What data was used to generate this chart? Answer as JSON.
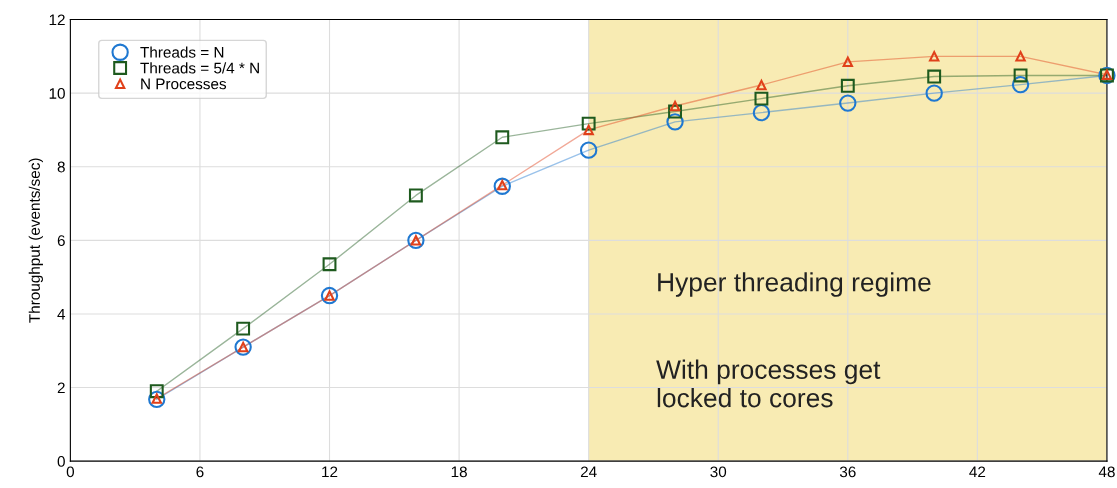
{
  "chart_data": {
    "type": "line",
    "ylabel": "Throughput (events/sec)",
    "x": [
      4,
      8,
      12,
      16,
      20,
      24,
      28,
      32,
      36,
      40,
      44,
      48
    ],
    "series": [
      {
        "name": "Threads = N",
        "color": "#1f78d1",
        "marker": "circle",
        "values": [
          1.68,
          3.1,
          4.5,
          6.0,
          7.47,
          8.45,
          9.22,
          9.47,
          9.73,
          10.0,
          10.23,
          10.48
        ]
      },
      {
        "name": "Threads = 5/4 * N",
        "color": "#1e5a1e",
        "marker": "square",
        "values": [
          1.9,
          3.6,
          5.35,
          7.22,
          8.8,
          9.17,
          9.5,
          9.85,
          10.2,
          10.45,
          10.48,
          10.48
        ]
      },
      {
        "name": "N Processes",
        "color": "#e0401a",
        "marker": "triangle",
        "values": [
          1.7,
          3.1,
          4.5,
          6.0,
          7.5,
          9.0,
          9.65,
          10.22,
          10.85,
          11.0,
          11.0,
          10.5
        ]
      }
    ],
    "xlim": [
      0,
      48
    ],
    "xticks": [
      0,
      6,
      12,
      18,
      24,
      30,
      36,
      42,
      48
    ],
    "ylim": [
      0,
      12
    ],
    "yticks": [
      0,
      2,
      4,
      6,
      8,
      10,
      12
    ],
    "bands": [
      {
        "axis": "x",
        "from": 24,
        "to": 48,
        "color": "#f8ebb3"
      }
    ],
    "annotations": [
      "Hyper threading regime",
      "With processes get\nlocked to cores"
    ],
    "grid": true,
    "legend": "top left",
    "line_style": "solid"
  }
}
